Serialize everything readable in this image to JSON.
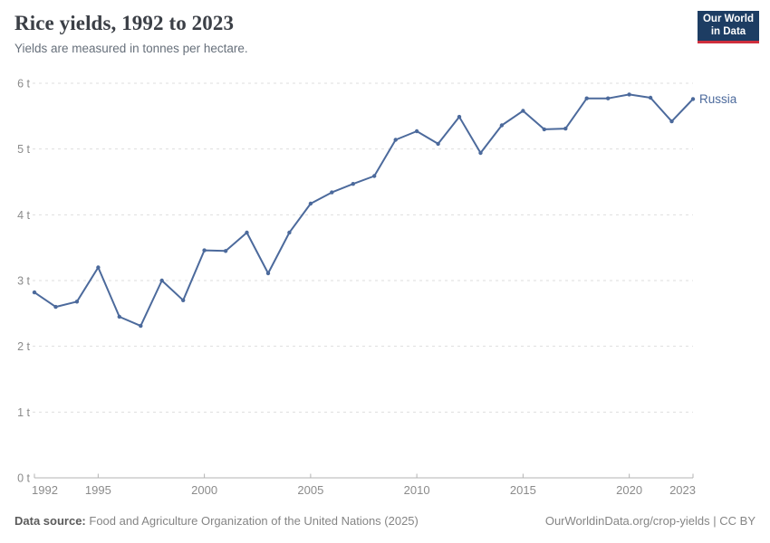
{
  "header": {
    "title": "Rice yields, 1992 to 2023",
    "subtitle": "Yields are measured in tonnes per hectare."
  },
  "logo": {
    "line1": "Our World",
    "line2": "in Data",
    "bg_color": "#1d3d63",
    "accent_color": "#cf2f3d",
    "text_color": "#ffffff"
  },
  "chart_data": {
    "type": "line",
    "title": "Rice yields, 1992 to 2023",
    "ylabel": "",
    "xlabel": "",
    "unit": "tonnes per hectare",
    "xlim": [
      1992,
      2023
    ],
    "ylim": [
      0,
      6
    ],
    "grid": "horizontal-dashed",
    "legend_position": "end-of-line-label",
    "x": [
      1992,
      1993,
      1994,
      1995,
      1996,
      1997,
      1998,
      1999,
      2000,
      2001,
      2002,
      2003,
      2004,
      2005,
      2006,
      2007,
      2008,
      2009,
      2010,
      2011,
      2012,
      2013,
      2014,
      2015,
      2016,
      2017,
      2018,
      2019,
      2020,
      2021,
      2022,
      2023
    ],
    "series": [
      {
        "name": "Russia",
        "color": "#4C6A9C",
        "values": [
          2.82,
          2.6,
          2.68,
          3.2,
          2.45,
          2.31,
          3.0,
          2.7,
          3.46,
          3.45,
          3.73,
          3.11,
          3.73,
          4.17,
          4.34,
          4.47,
          4.59,
          5.14,
          5.27,
          5.08,
          5.49,
          4.94,
          5.36,
          5.58,
          5.3,
          5.31,
          5.77,
          5.77,
          5.83,
          5.78,
          5.42,
          5.76
        ]
      }
    ],
    "yticks": [
      {
        "value": 0,
        "label": "0 t"
      },
      {
        "value": 1,
        "label": "1 t"
      },
      {
        "value": 2,
        "label": "2 t"
      },
      {
        "value": 3,
        "label": "3 t"
      },
      {
        "value": 4,
        "label": "4 t"
      },
      {
        "value": 5,
        "label": "5 t"
      },
      {
        "value": 6,
        "label": "6 t"
      }
    ],
    "xticks": [
      {
        "value": 1992,
        "label": "1992"
      },
      {
        "value": 1995,
        "label": "1995"
      },
      {
        "value": 2000,
        "label": "2000"
      },
      {
        "value": 2005,
        "label": "2005"
      },
      {
        "value": 2010,
        "label": "2010"
      },
      {
        "value": 2015,
        "label": "2015"
      },
      {
        "value": 2020,
        "label": "2020"
      },
      {
        "value": 2023,
        "label": "2023"
      }
    ],
    "grid_color": "#dedede",
    "axis_color": "#b3b3b3",
    "tick_label_color": "#8b8b8b"
  },
  "footer": {
    "source_label": "Data source:",
    "source_text": "Food and Agriculture Organization of the United Nations (2025)",
    "credit": "OurWorldinData.org/crop-yields | CC BY"
  }
}
